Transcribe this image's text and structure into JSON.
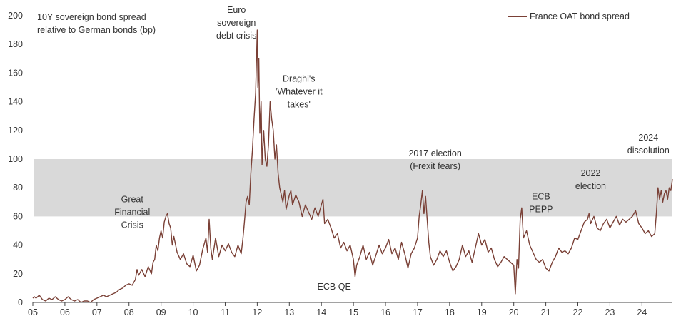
{
  "chart_data": {
    "type": "line",
    "title": "",
    "ylabel_lines": [
      "10Y sovereign bond spread",
      "relative to German bonds (bp)"
    ],
    "xlabel": "",
    "ylim": [
      0,
      200
    ],
    "yticks": [
      "0",
      "20",
      "40",
      "60",
      "80",
      "100",
      "120",
      "140",
      "160",
      "180",
      "200"
    ],
    "xlim": [
      2005,
      2024.95
    ],
    "xticks": [
      {
        "year": 2005,
        "label": "05"
      },
      {
        "year": 2006,
        "label": "06"
      },
      {
        "year": 2007,
        "label": "07"
      },
      {
        "year": 2008,
        "label": "08"
      },
      {
        "year": 2009,
        "label": "09"
      },
      {
        "year": 2010,
        "label": "10"
      },
      {
        "year": 2011,
        "label": "11"
      },
      {
        "year": 2012,
        "label": "12"
      },
      {
        "year": 2013,
        "label": "13"
      },
      {
        "year": 2014,
        "label": "14"
      },
      {
        "year": 2015,
        "label": "15"
      },
      {
        "year": 2016,
        "label": "16"
      },
      {
        "year": 2017,
        "label": "17"
      },
      {
        "year": 2018,
        "label": "18"
      },
      {
        "year": 2019,
        "label": "19"
      },
      {
        "year": 2020,
        "label": "20"
      },
      {
        "year": 2021,
        "label": "21"
      },
      {
        "year": 2022,
        "label": "22"
      },
      {
        "year": 2023,
        "label": "23"
      },
      {
        "year": 2024,
        "label": "24"
      }
    ],
    "shaded_band": {
      "from": 60,
      "to": 100,
      "color": "#d9d9d9"
    },
    "legend_position": "top-right",
    "series": [
      {
        "name": "France OAT bond spread",
        "color": "#7a4036",
        "points": [
          [
            2005.0,
            3
          ],
          [
            2005.05,
            4
          ],
          [
            2005.1,
            3
          ],
          [
            2005.2,
            5
          ],
          [
            2005.3,
            2
          ],
          [
            2005.4,
            1
          ],
          [
            2005.5,
            3
          ],
          [
            2005.6,
            2
          ],
          [
            2005.7,
            4
          ],
          [
            2005.8,
            2
          ],
          [
            2005.9,
            1
          ],
          [
            2006.0,
            2
          ],
          [
            2006.1,
            4
          ],
          [
            2006.2,
            2
          ],
          [
            2006.3,
            1
          ],
          [
            2006.4,
            2
          ],
          [
            2006.5,
            0
          ],
          [
            2006.6,
            1
          ],
          [
            2006.7,
            1
          ],
          [
            2006.8,
            0
          ],
          [
            2006.9,
            2
          ],
          [
            2007.0,
            3
          ],
          [
            2007.1,
            4
          ],
          [
            2007.2,
            5
          ],
          [
            2007.3,
            4
          ],
          [
            2007.4,
            5
          ],
          [
            2007.5,
            6
          ],
          [
            2007.6,
            7
          ],
          [
            2007.7,
            9
          ],
          [
            2007.8,
            10
          ],
          [
            2007.9,
            12
          ],
          [
            2008.0,
            13
          ],
          [
            2008.1,
            12
          ],
          [
            2008.2,
            16
          ],
          [
            2008.25,
            23
          ],
          [
            2008.3,
            19
          ],
          [
            2008.4,
            23
          ],
          [
            2008.5,
            18
          ],
          [
            2008.6,
            25
          ],
          [
            2008.7,
            20
          ],
          [
            2008.75,
            28
          ],
          [
            2008.8,
            30
          ],
          [
            2008.85,
            40
          ],
          [
            2008.9,
            36
          ],
          [
            2008.95,
            45
          ],
          [
            2009.0,
            50
          ],
          [
            2009.05,
            45
          ],
          [
            2009.1,
            56
          ],
          [
            2009.15,
            60
          ],
          [
            2009.2,
            62
          ],
          [
            2009.25,
            55
          ],
          [
            2009.3,
            52
          ],
          [
            2009.35,
            40
          ],
          [
            2009.4,
            46
          ],
          [
            2009.5,
            35
          ],
          [
            2009.6,
            30
          ],
          [
            2009.7,
            34
          ],
          [
            2009.8,
            27
          ],
          [
            2009.9,
            25
          ],
          [
            2010.0,
            33
          ],
          [
            2010.1,
            22
          ],
          [
            2010.2,
            26
          ],
          [
            2010.3,
            37
          ],
          [
            2010.4,
            45
          ],
          [
            2010.45,
            35
          ],
          [
            2010.5,
            58
          ],
          [
            2010.55,
            38
          ],
          [
            2010.6,
            30
          ],
          [
            2010.7,
            45
          ],
          [
            2010.8,
            32
          ],
          [
            2010.9,
            40
          ],
          [
            2011.0,
            36
          ],
          [
            2011.1,
            41
          ],
          [
            2011.2,
            35
          ],
          [
            2011.3,
            32
          ],
          [
            2011.4,
            40
          ],
          [
            2011.5,
            34
          ],
          [
            2011.55,
            44
          ],
          [
            2011.6,
            56
          ],
          [
            2011.65,
            70
          ],
          [
            2011.7,
            74
          ],
          [
            2011.75,
            68
          ],
          [
            2011.8,
            90
          ],
          [
            2011.85,
            106
          ],
          [
            2011.9,
            128
          ],
          [
            2011.95,
            146
          ],
          [
            2012.0,
            190
          ],
          [
            2012.02,
            150
          ],
          [
            2012.05,
            170
          ],
          [
            2012.08,
            118
          ],
          [
            2012.12,
            140
          ],
          [
            2012.15,
            96
          ],
          [
            2012.2,
            120
          ],
          [
            2012.25,
            100
          ],
          [
            2012.3,
            95
          ],
          [
            2012.35,
            110
          ],
          [
            2012.4,
            140
          ],
          [
            2012.45,
            128
          ],
          [
            2012.5,
            120
          ],
          [
            2012.55,
            100
          ],
          [
            2012.6,
            110
          ],
          [
            2012.65,
            90
          ],
          [
            2012.7,
            80
          ],
          [
            2012.75,
            75
          ],
          [
            2012.8,
            70
          ],
          [
            2012.85,
            78
          ],
          [
            2012.9,
            65
          ],
          [
            2012.95,
            70
          ],
          [
            2013.0,
            75
          ],
          [
            2013.05,
            78
          ],
          [
            2013.1,
            68
          ],
          [
            2013.2,
            75
          ],
          [
            2013.3,
            70
          ],
          [
            2013.4,
            60
          ],
          [
            2013.5,
            68
          ],
          [
            2013.6,
            63
          ],
          [
            2013.7,
            58
          ],
          [
            2013.8,
            66
          ],
          [
            2013.9,
            60
          ],
          [
            2014.0,
            68
          ],
          [
            2014.05,
            72
          ],
          [
            2014.1,
            55
          ],
          [
            2014.2,
            58
          ],
          [
            2014.3,
            52
          ],
          [
            2014.4,
            45
          ],
          [
            2014.5,
            48
          ],
          [
            2014.6,
            38
          ],
          [
            2014.7,
            42
          ],
          [
            2014.8,
            36
          ],
          [
            2014.9,
            40
          ],
          [
            2015.0,
            30
          ],
          [
            2015.05,
            18
          ],
          [
            2015.1,
            26
          ],
          [
            2015.2,
            32
          ],
          [
            2015.3,
            40
          ],
          [
            2015.4,
            30
          ],
          [
            2015.5,
            35
          ],
          [
            2015.6,
            26
          ],
          [
            2015.7,
            33
          ],
          [
            2015.8,
            40
          ],
          [
            2015.9,
            34
          ],
          [
            2016.0,
            38
          ],
          [
            2016.1,
            44
          ],
          [
            2016.2,
            34
          ],
          [
            2016.3,
            38
          ],
          [
            2016.4,
            30
          ],
          [
            2016.5,
            42
          ],
          [
            2016.6,
            34
          ],
          [
            2016.7,
            24
          ],
          [
            2016.8,
            34
          ],
          [
            2016.9,
            38
          ],
          [
            2017.0,
            45
          ],
          [
            2017.05,
            60
          ],
          [
            2017.1,
            68
          ],
          [
            2017.15,
            78
          ],
          [
            2017.2,
            62
          ],
          [
            2017.25,
            74
          ],
          [
            2017.3,
            58
          ],
          [
            2017.35,
            42
          ],
          [
            2017.4,
            32
          ],
          [
            2017.5,
            26
          ],
          [
            2017.6,
            30
          ],
          [
            2017.7,
            36
          ],
          [
            2017.8,
            32
          ],
          [
            2017.9,
            36
          ],
          [
            2018.0,
            28
          ],
          [
            2018.1,
            22
          ],
          [
            2018.2,
            25
          ],
          [
            2018.3,
            30
          ],
          [
            2018.4,
            40
          ],
          [
            2018.5,
            32
          ],
          [
            2018.6,
            36
          ],
          [
            2018.7,
            28
          ],
          [
            2018.8,
            38
          ],
          [
            2018.9,
            48
          ],
          [
            2019.0,
            40
          ],
          [
            2019.1,
            44
          ],
          [
            2019.2,
            35
          ],
          [
            2019.3,
            38
          ],
          [
            2019.4,
            30
          ],
          [
            2019.5,
            25
          ],
          [
            2019.6,
            28
          ],
          [
            2019.7,
            32
          ],
          [
            2019.8,
            30
          ],
          [
            2019.9,
            28
          ],
          [
            2020.0,
            26
          ],
          [
            2020.05,
            6
          ],
          [
            2020.1,
            30
          ],
          [
            2020.15,
            24
          ],
          [
            2020.2,
            58
          ],
          [
            2020.25,
            66
          ],
          [
            2020.3,
            45
          ],
          [
            2020.4,
            50
          ],
          [
            2020.5,
            40
          ],
          [
            2020.6,
            35
          ],
          [
            2020.7,
            30
          ],
          [
            2020.8,
            28
          ],
          [
            2020.9,
            30
          ],
          [
            2021.0,
            24
          ],
          [
            2021.1,
            22
          ],
          [
            2021.2,
            28
          ],
          [
            2021.3,
            32
          ],
          [
            2021.4,
            38
          ],
          [
            2021.5,
            35
          ],
          [
            2021.6,
            36
          ],
          [
            2021.7,
            34
          ],
          [
            2021.8,
            38
          ],
          [
            2021.9,
            45
          ],
          [
            2022.0,
            44
          ],
          [
            2022.1,
            50
          ],
          [
            2022.2,
            56
          ],
          [
            2022.3,
            58
          ],
          [
            2022.35,
            62
          ],
          [
            2022.4,
            55
          ],
          [
            2022.5,
            60
          ],
          [
            2022.6,
            52
          ],
          [
            2022.7,
            50
          ],
          [
            2022.8,
            55
          ],
          [
            2022.9,
            58
          ],
          [
            2023.0,
            52
          ],
          [
            2023.1,
            56
          ],
          [
            2023.2,
            60
          ],
          [
            2023.3,
            54
          ],
          [
            2023.4,
            58
          ],
          [
            2023.5,
            56
          ],
          [
            2023.6,
            58
          ],
          [
            2023.7,
            60
          ],
          [
            2023.8,
            64
          ],
          [
            2023.9,
            55
          ],
          [
            2024.0,
            52
          ],
          [
            2024.1,
            48
          ],
          [
            2024.2,
            50
          ],
          [
            2024.3,
            46
          ],
          [
            2024.4,
            48
          ],
          [
            2024.45,
            62
          ],
          [
            2024.5,
            80
          ],
          [
            2024.55,
            72
          ],
          [
            2024.6,
            78
          ],
          [
            2024.65,
            70
          ],
          [
            2024.7,
            76
          ],
          [
            2024.75,
            78
          ],
          [
            2024.8,
            72
          ],
          [
            2024.85,
            80
          ],
          [
            2024.9,
            78
          ],
          [
            2024.95,
            86
          ]
        ]
      }
    ],
    "annotations": [
      {
        "lines": [
          "Great",
          "Financial",
          "Crisis"
        ],
        "year": 2008.1,
        "value": 52
      },
      {
        "lines": [
          "Euro",
          "sovereign",
          "debt crisis"
        ],
        "year": 2011.35,
        "value": 184
      },
      {
        "lines": [
          "Draghi's",
          "'Whatever it",
          "takes'"
        ],
        "year": 2013.3,
        "value": 136
      },
      {
        "lines": [
          "ECB QE"
        ],
        "year": 2014.4,
        "value": 9
      },
      {
        "lines": [
          "2017 election",
          "(Frexit fears)"
        ],
        "year": 2017.55,
        "value": 93
      },
      {
        "lines": [
          "ECB",
          "PEPP"
        ],
        "year": 2020.85,
        "value": 63
      },
      {
        "lines": [
          "2022",
          "election"
        ],
        "year": 2022.4,
        "value": 79
      },
      {
        "lines": [
          "2024",
          "dissolution"
        ],
        "year": 2024.2,
        "value": 104
      }
    ]
  }
}
